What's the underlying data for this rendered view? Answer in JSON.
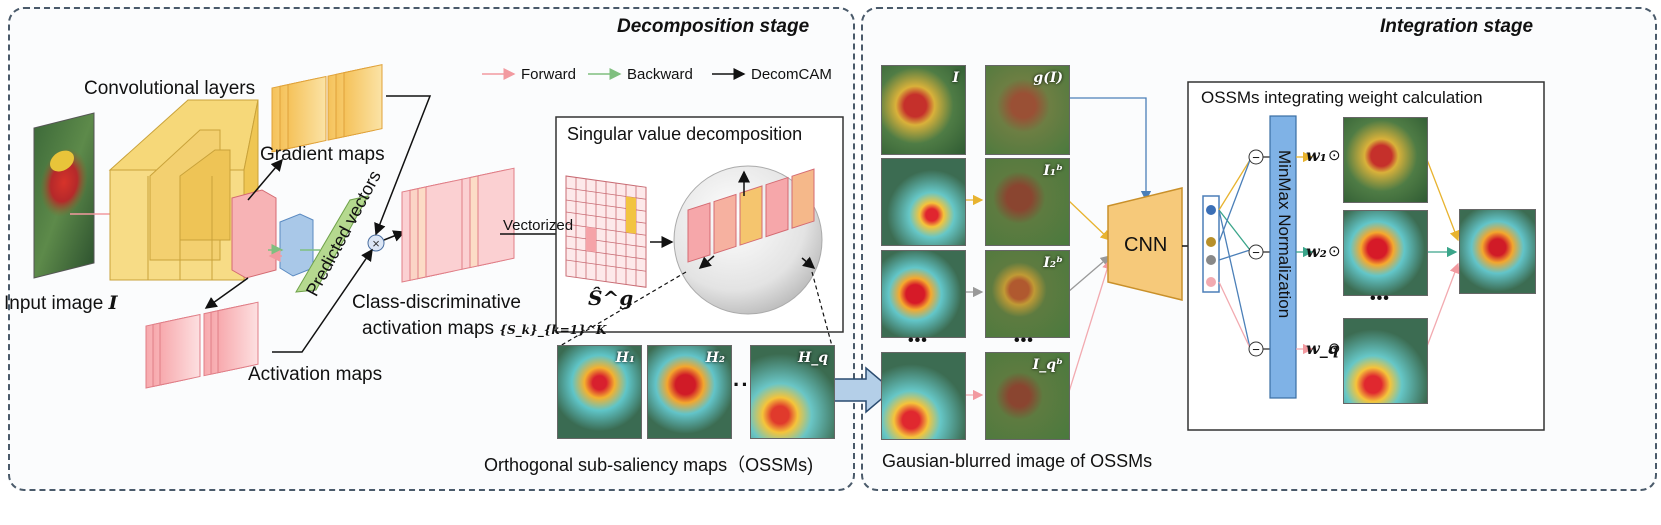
{
  "stages": {
    "decomposition_title": "Decomposition stage",
    "integration_title": "Integration stage"
  },
  "legend": {
    "forward": "Forward",
    "backward": "Backward",
    "decomcam": "DecomCAM",
    "forward_color": "#f29aa0",
    "backward_color": "#7fbf7f",
    "decomcam_color": "#111111"
  },
  "decomposition": {
    "conv_layers": "Convolutional layers",
    "gradient_maps": "Gradient maps",
    "predicted_vectors": "Predicted vectors",
    "input_image": "Input image",
    "input_image_symbol": "I",
    "activation_maps": "Activation maps",
    "class_discriminative_line1": "Class-discriminative",
    "class_discriminative_line2": "activation maps",
    "class_discriminative_symbol": "{S_k}_{k=1}^K",
    "svd_title": "Singular value decomposition",
    "vectorized": "Vectorized",
    "s_g_symbol": "Ŝ^g",
    "ossm_caption": "Orthogonal sub-saliency maps（OSSMs)",
    "ossm_tags": [
      "H₁",
      "H₂",
      "H_q"
    ],
    "ellipsis": "··"
  },
  "integration": {
    "left_column_tags": [
      "I",
      "",
      "",
      ""
    ],
    "right_column_tags": [
      "g(I)",
      "I₁ᵇ",
      "I₂ᵇ",
      "I_qᵇ"
    ],
    "ellipsis": "•••",
    "cnn_label": "CNN",
    "blurred_caption": "Gausian-blurred image of OSSMs",
    "weight_box_title": "OSSMs integrating weight calculation",
    "minmax_label": "MinMax Normalization",
    "weights": [
      "w₁",
      "w₂",
      "w_q"
    ],
    "minus_symbol": "⊖",
    "dot_colors": [
      "#3b6fb6",
      "#b8902a",
      "#888888",
      "#f2aab0"
    ]
  }
}
